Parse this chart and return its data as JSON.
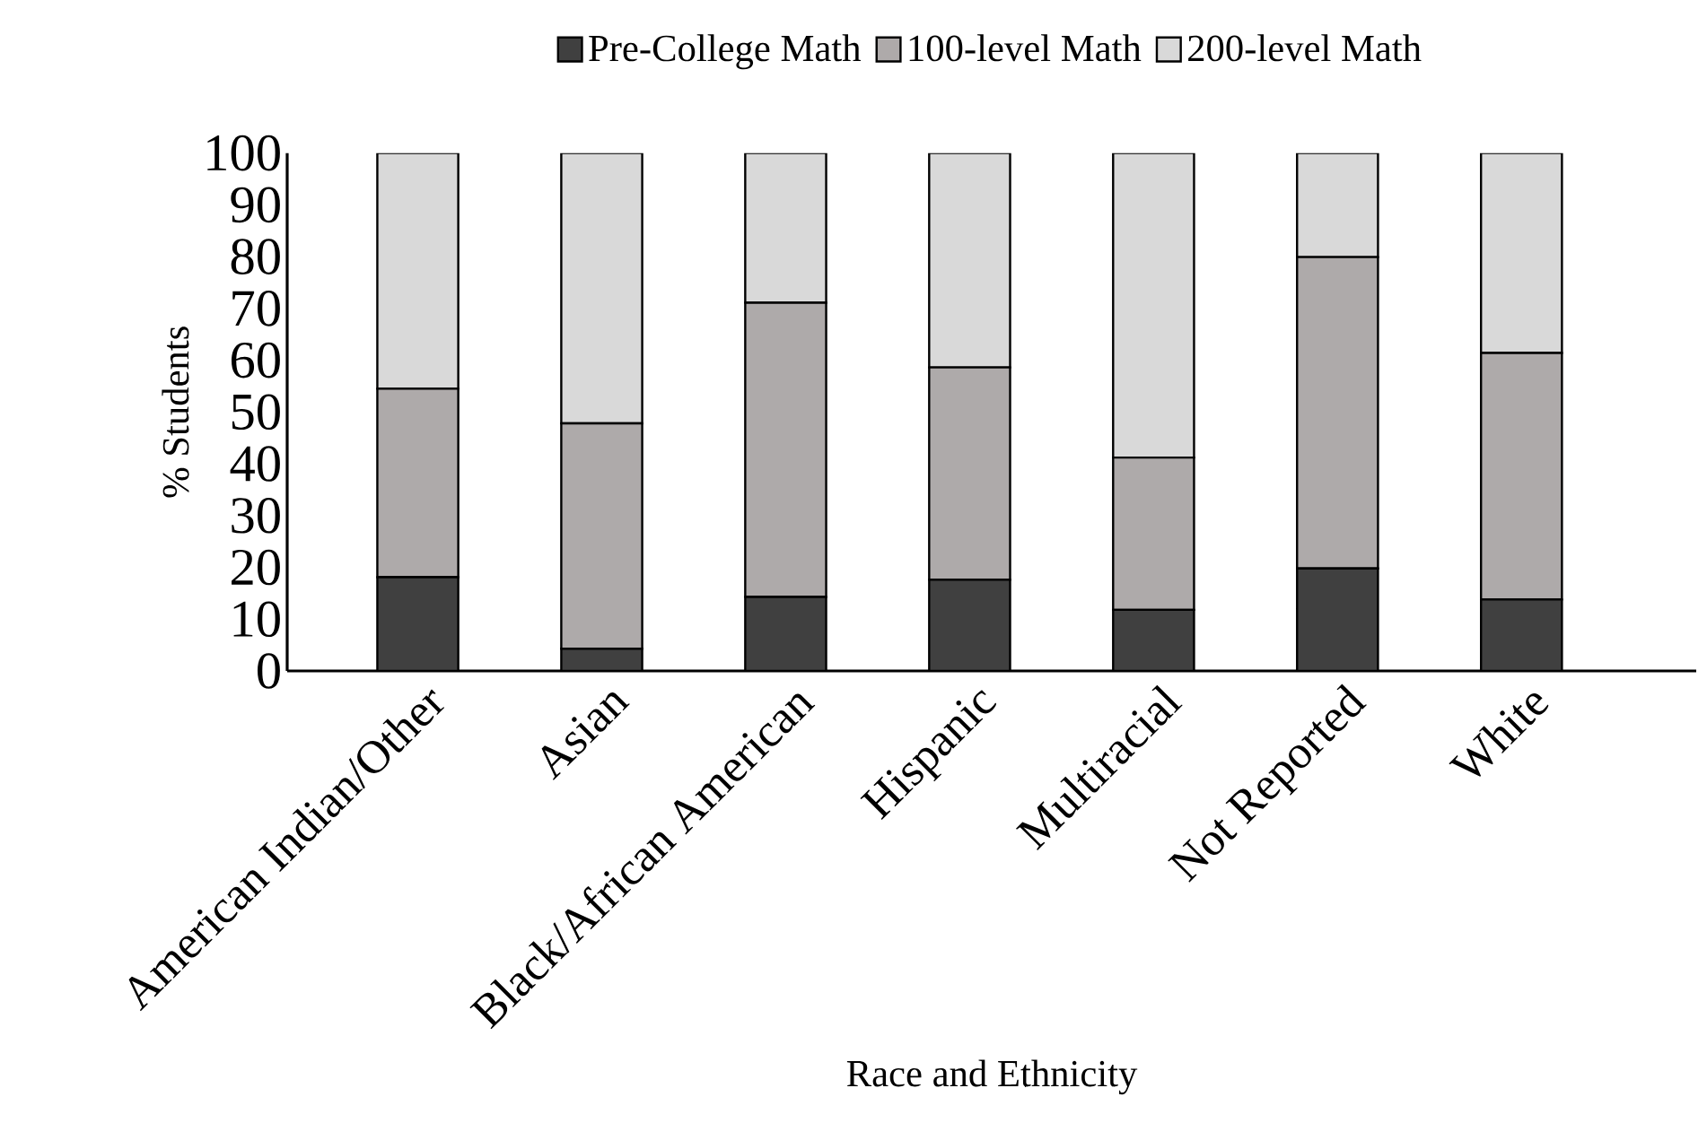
{
  "chart_data": {
    "type": "bar",
    "stacked": true,
    "xlabel": "Race and Ethnicity",
    "ylabel": "% Students",
    "categories": [
      "American Indian/Other",
      "Asian",
      "Black/African American",
      "Hispanic",
      "Multiracial",
      "Not Reported",
      "White"
    ],
    "series": [
      {
        "name": "Pre-College Math",
        "color": "#404040",
        "values": [
          18.1,
          4.3,
          14.3,
          17.6,
          11.8,
          19.8,
          13.8
        ]
      },
      {
        "name": "100-level Math",
        "color": "#aeaaaa",
        "values": [
          36.4,
          43.5,
          56.8,
          41.0,
          29.4,
          60.1,
          47.6
        ]
      },
      {
        "name": "200-level Math",
        "color": "#d9d9d9",
        "values": [
          45.5,
          52.2,
          28.9,
          41.4,
          58.8,
          20.1,
          38.6
        ]
      }
    ],
    "ylim": [
      0,
      100
    ],
    "yticks": [
      0,
      10,
      20,
      30,
      40,
      50,
      60,
      70,
      80,
      90,
      100
    ],
    "grid": false,
    "legend": "top"
  }
}
